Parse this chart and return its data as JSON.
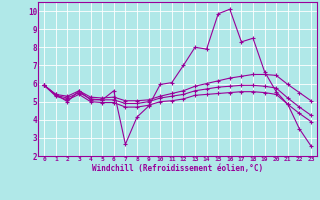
{
  "xlabel": "Windchill (Refroidissement éolien,°C)",
  "x": [
    0,
    1,
    2,
    3,
    4,
    5,
    6,
    7,
    8,
    9,
    10,
    11,
    12,
    13,
    14,
    15,
    16,
    17,
    18,
    19,
    20,
    21,
    22,
    23
  ],
  "line1": [
    5.9,
    5.4,
    5.0,
    5.6,
    5.1,
    5.1,
    5.6,
    2.65,
    4.15,
    4.75,
    5.95,
    6.05,
    7.0,
    8.0,
    7.9,
    9.85,
    10.1,
    8.3,
    8.5,
    6.65,
    5.55,
    4.85,
    3.5,
    2.55
  ],
  "line2": [
    5.9,
    5.4,
    5.3,
    5.6,
    5.25,
    5.2,
    5.25,
    5.05,
    5.05,
    5.1,
    5.3,
    5.45,
    5.6,
    5.85,
    6.0,
    6.15,
    6.3,
    6.4,
    6.5,
    6.5,
    6.45,
    5.95,
    5.5,
    5.05
  ],
  "line3": [
    5.9,
    5.35,
    5.2,
    5.5,
    5.15,
    5.1,
    5.1,
    4.9,
    4.9,
    5.0,
    5.2,
    5.3,
    5.4,
    5.6,
    5.7,
    5.8,
    5.85,
    5.9,
    5.9,
    5.85,
    5.75,
    5.2,
    4.7,
    4.25
  ],
  "line4": [
    5.9,
    5.3,
    5.1,
    5.4,
    5.0,
    4.95,
    4.95,
    4.7,
    4.7,
    4.8,
    5.0,
    5.05,
    5.15,
    5.35,
    5.4,
    5.45,
    5.5,
    5.55,
    5.55,
    5.5,
    5.4,
    4.85,
    4.35,
    3.9
  ],
  "bg_color": "#b0e8e8",
  "line_color": "#990099",
  "grid_color": "#ffffff",
  "ylim": [
    2,
    10
  ],
  "yticks": [
    2,
    3,
    4,
    5,
    6,
    7,
    8,
    9,
    10
  ]
}
